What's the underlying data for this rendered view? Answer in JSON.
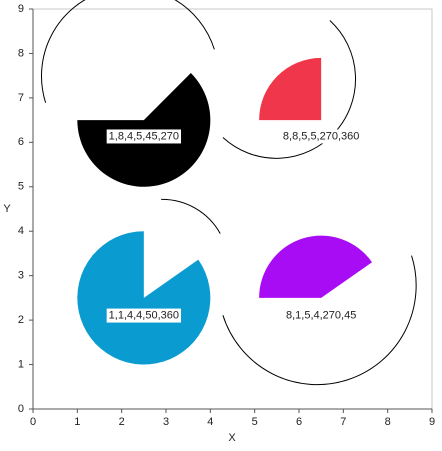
{
  "chart_data": {
    "type": "wedge",
    "x_label": "X",
    "y_label": "Y",
    "xlim": [
      0,
      9
    ],
    "ylim": [
      0,
      9
    ],
    "xticks": [
      0,
      1,
      2,
      3,
      4,
      5,
      6,
      7,
      8,
      9
    ],
    "yticks": [
      0,
      1,
      2,
      3,
      4,
      5,
      6,
      7,
      8,
      9
    ],
    "items": [
      {
        "label": "1,8,4,5,45,270",
        "label_x": 2.5,
        "label_y": 6.13,
        "cx": 2.5,
        "cy": 6.5,
        "r": 1.5,
        "wedge": [
          180,
          405
        ],
        "arc": [
          45,
          170
        ],
        "color": "#000000"
      },
      {
        "label": "8,8,5,5,270,360",
        "label_x": 6.5,
        "label_y": 6.13,
        "cx": 6.5,
        "cy": 6.5,
        "r": 1.4,
        "wedge": [
          90,
          180
        ],
        "arc": [
          190,
          445
        ],
        "color": "#f0364a"
      },
      {
        "label": "1,1,4,4,50,360",
        "label_x": 2.5,
        "label_y": 2.1,
        "cx": 2.5,
        "cy": 2.5,
        "r": 1.5,
        "wedge": [
          90,
          395
        ],
        "arc": [
          40,
          80
        ],
        "color": "#0a9bd0"
      },
      {
        "label": "8,1,5,4,270,45",
        "label_x": 6.5,
        "label_y": 2.1,
        "cx": 6.5,
        "cy": 2.5,
        "r": 1.4,
        "wedge": [
          35,
          180
        ],
        "arc": [
          190,
          385
        ],
        "color": "#a80cf5"
      }
    ]
  }
}
